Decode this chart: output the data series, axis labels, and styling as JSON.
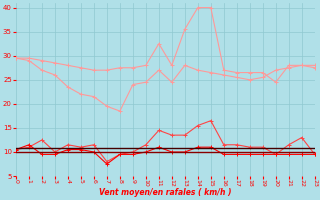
{
  "x": [
    0,
    1,
    2,
    3,
    4,
    5,
    6,
    7,
    8,
    9,
    10,
    11,
    12,
    13,
    14,
    15,
    16,
    17,
    18,
    19,
    20,
    21,
    22,
    23
  ],
  "series": [
    {
      "name": "rafales_max",
      "color": "#ff9999",
      "lw": 0.8,
      "marker": "+",
      "ms": 3,
      "mew": 0.7,
      "y": [
        29.5,
        29.5,
        29.0,
        28.5,
        28.0,
        27.5,
        27.0,
        27.0,
        27.5,
        27.5,
        28.0,
        32.5,
        28.0,
        35.5,
        40.0,
        40.0,
        27.0,
        26.5,
        26.5,
        26.5,
        24.5,
        28.0,
        28.0,
        28.0
      ]
    },
    {
      "name": "rafales_moy",
      "color": "#ff9999",
      "lw": 0.8,
      "marker": "+",
      "ms": 3,
      "mew": 0.7,
      "y": [
        29.5,
        29.0,
        27.0,
        26.0,
        23.5,
        22.0,
        21.5,
        19.5,
        18.5,
        24.0,
        24.5,
        27.0,
        24.5,
        28.0,
        27.0,
        26.5,
        26.0,
        25.5,
        25.0,
        25.5,
        27.0,
        27.5,
        28.0,
        27.5
      ]
    },
    {
      "name": "vent_max_rouge",
      "color": "#ff4444",
      "lw": 0.8,
      "marker": "+",
      "ms": 3,
      "mew": 0.7,
      "y": [
        10.5,
        11.0,
        12.5,
        10.0,
        11.5,
        11.0,
        11.5,
        8.0,
        9.5,
        10.0,
        11.5,
        14.5,
        13.5,
        13.5,
        15.5,
        16.5,
        11.5,
        11.5,
        11.0,
        11.0,
        9.5,
        11.5,
        13.0,
        9.5
      ]
    },
    {
      "name": "vent_moy_rouge",
      "color": "#ff0000",
      "lw": 0.8,
      "marker": "+",
      "ms": 3,
      "mew": 0.7,
      "y": [
        10.5,
        11.5,
        9.5,
        9.5,
        10.5,
        10.5,
        10.0,
        7.5,
        9.5,
        9.5,
        10.0,
        11.0,
        10.0,
        10.0,
        11.0,
        11.0,
        9.5,
        9.5,
        9.5,
        9.5,
        9.5,
        9.5,
        9.5,
        9.5
      ]
    },
    {
      "name": "flat_line1",
      "color": "#880000",
      "lw": 1.0,
      "marker": null,
      "ms": 0,
      "mew": 0,
      "y": [
        10.0,
        10.0,
        10.0,
        10.0,
        10.0,
        10.0,
        10.0,
        10.0,
        10.0,
        10.0,
        10.0,
        10.0,
        10.0,
        10.0,
        10.0,
        10.0,
        10.0,
        10.0,
        10.0,
        10.0,
        10.0,
        10.0,
        10.0,
        10.0
      ]
    },
    {
      "name": "flat_line2",
      "color": "#440000",
      "lw": 1.0,
      "marker": null,
      "ms": 0,
      "mew": 0,
      "y": [
        10.8,
        10.8,
        10.8,
        10.8,
        10.8,
        10.8,
        10.8,
        10.8,
        10.8,
        10.8,
        10.8,
        10.8,
        10.8,
        10.8,
        10.8,
        10.8,
        10.8,
        10.8,
        10.8,
        10.8,
        10.8,
        10.8,
        10.8,
        10.8
      ]
    }
  ],
  "xlabel": "Vent moyen/en rafales ( km/h )",
  "xlim": [
    0,
    23
  ],
  "ylim": [
    5,
    41
  ],
  "yticks": [
    5,
    10,
    15,
    20,
    25,
    30,
    35,
    40
  ],
  "xticks": [
    0,
    1,
    2,
    3,
    4,
    5,
    6,
    7,
    8,
    9,
    10,
    11,
    12,
    13,
    14,
    15,
    16,
    17,
    18,
    19,
    20,
    21,
    22,
    23
  ],
  "bg_color": "#b0e0e8",
  "grid_color": "#90c8d0",
  "tick_color": "#ff0000",
  "label_color": "#ff0000"
}
